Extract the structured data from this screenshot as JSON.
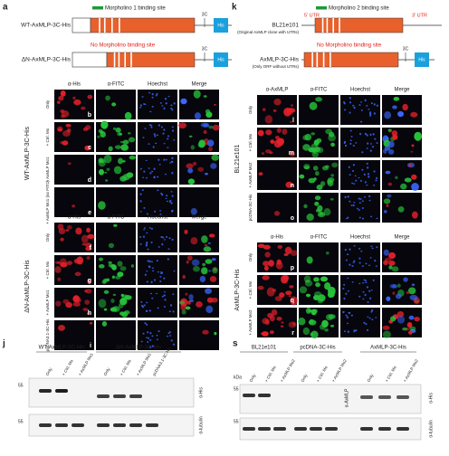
{
  "panel_a": {
    "letter": "a",
    "constructs": [
      {
        "name": "WT-AxMLP-3C-His",
        "site_label": "Morpholino 1 binding site"
      },
      {
        "name": "ΔN-AxMLP-3C-His",
        "site_label": "No Morpholino binding site"
      }
    ],
    "tag_3c": "3C",
    "tag_his": "His"
  },
  "panel_k": {
    "letter": "k",
    "constructs": [
      {
        "name": "BL21e101",
        "note": "(Original AxMLP clone with UTRs)",
        "site_label": "Morpholino 2 binding site"
      },
      {
        "name": "AxMLP-3C-His",
        "note": "(Only ORF without UTRs)",
        "site_label": "No Morpholino binding site"
      }
    ],
    "utr5": "5' UTR",
    "utr3": "3' UTR",
    "tag_3c": "3C",
    "tag_his": "His"
  },
  "grid_left": {
    "groups": [
      {
        "name": "WT-AxMLP-3C-His",
        "headers": [
          "α-His",
          "α-FITC",
          "Hoechst",
          "Merge"
        ],
        "rows": [
          {
            "letter": "b",
            "label": "Only"
          },
          {
            "letter": "c",
            "label": "+ Ctrl. Mo"
          },
          {
            "letter": "d",
            "label": "+ AxMLP Mo1"
          },
          {
            "letter": "e",
            "label": "+ AxMLP Mo1 (no FITC)"
          }
        ]
      },
      {
        "name": "ΔN-AxMLP-3C-His",
        "headers": [
          "α-His",
          "α-FITC",
          "Hoechst",
          "Merge"
        ],
        "rows": [
          {
            "letter": "f",
            "label": "Only"
          },
          {
            "letter": "g",
            "label": "+ Ctrl. Mo"
          },
          {
            "letter": "h",
            "label": "+ AxMLP Mo1"
          },
          {
            "letter": "i",
            "label": "pcDNA3.1-3C-His"
          }
        ]
      }
    ]
  },
  "grid_right": {
    "groups": [
      {
        "name": "BL21e101",
        "headers": [
          "α-AxMLP",
          "α-FITC",
          "Hoechst",
          "Merge"
        ],
        "rows": [
          {
            "letter": "l",
            "label": "Only"
          },
          {
            "letter": "m",
            "label": "+ Ctrl. Mo"
          },
          {
            "letter": "n",
            "label": "+ AxMLP Mo2"
          },
          {
            "letter": "o",
            "label": "pcDNA-3C-His"
          }
        ]
      },
      {
        "name": "AxMLP-3C-His",
        "headers": [
          "α-His",
          "α-FITC",
          "Hoechst",
          "Merge"
        ],
        "rows": [
          {
            "letter": "p",
            "label": "Only"
          },
          {
            "letter": "q",
            "label": "+ Ctrl. Mo"
          },
          {
            "letter": "r",
            "label": "+ AxMLP Mo2"
          }
        ]
      }
    ]
  },
  "blot_j": {
    "letter": "j",
    "groups": [
      "WT-AxMLP-3C-His",
      "ΔN-AxMLP-3C-His"
    ],
    "lanes": [
      "Only",
      "+ Ctrl. Mo",
      "+ AxMLP Mo1",
      "Only",
      "+ Ctrl. Mo",
      "+ AxMLP Mo1",
      "pcDNA3.1-3C-His"
    ],
    "kda_labels": [
      "55",
      "55"
    ],
    "antibodies": [
      "α-His",
      "α-tubulin"
    ]
  },
  "blot_s": {
    "letter": "s",
    "groups": [
      "BL21e101",
      "pcDNA-3C-His",
      "AxMLP-3C-His"
    ],
    "lanes": [
      "Only",
      "+ Ctrl. Mo",
      "+ AxMLP Mo2",
      "Only",
      "+ Ctrl. Mo",
      "+ AxMLP Mo2",
      "Only",
      "+ Ctrl. Mo",
      "+ AxMLP Mo2"
    ],
    "kda": "kDa",
    "kda_labels": [
      "55",
      "55"
    ],
    "antibodies": [
      "α-AxMLP",
      "α-His",
      "α-tubulin"
    ]
  }
}
